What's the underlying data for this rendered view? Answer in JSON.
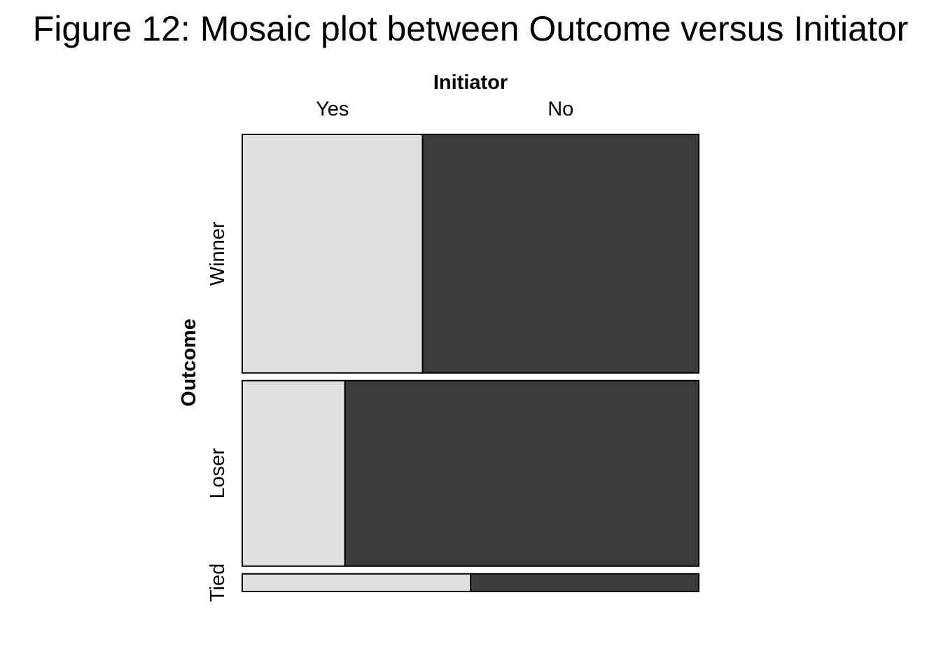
{
  "chart_data": {
    "type": "mosaic",
    "title": "Figure 12: Mosaic plot between Outcome versus Initiator",
    "xlabel": "Initiator",
    "ylabel": "Outcome",
    "column_variable": "Initiator",
    "row_variable": "Outcome",
    "columns": [
      "Yes",
      "No"
    ],
    "rows": [
      {
        "label": "Winner",
        "share": 0.54,
        "column_shares": [
          0.395,
          0.605
        ]
      },
      {
        "label": "Loser",
        "share": 0.42,
        "column_shares": [
          0.225,
          0.775
        ]
      },
      {
        "label": "Tied",
        "share": 0.04,
        "column_shares": [
          0.5,
          0.5
        ]
      }
    ],
    "colors": {
      "Yes": "#e0e0e0",
      "No": "#3c3c3c",
      "border": "#000000"
    },
    "grid": false,
    "legend": "none"
  }
}
